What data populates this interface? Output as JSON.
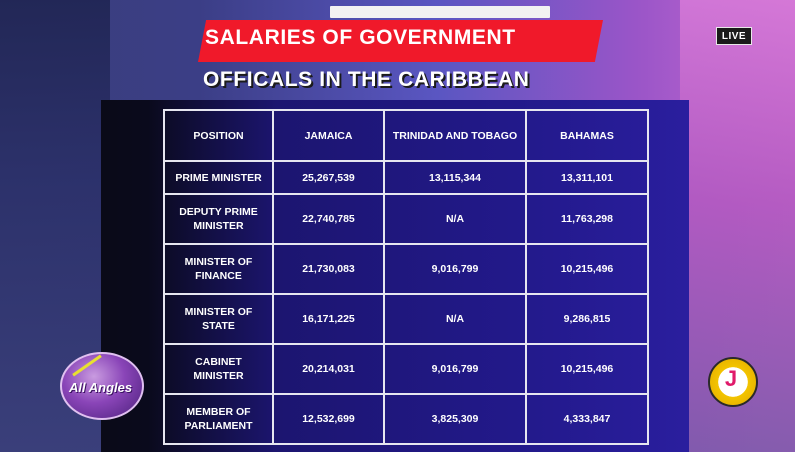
{
  "live_badge": "LIVE",
  "title": {
    "line1": "SALARIES OF GOVERNMENT",
    "line2": "OFFICALS IN THE CARIBBEAN"
  },
  "table": {
    "headers": [
      "POSITION",
      "JAMAICA",
      "TRINIDAD AND TOBAGO",
      "BAHAMAS"
    ],
    "rows": [
      {
        "position": "PRIME MINISTER",
        "jamaica": "25,267,539",
        "trinidad": "13,115,344",
        "bahamas": "13,311,101"
      },
      {
        "position": "DEPUTY PRIME MINISTER",
        "jamaica": "22,740,785",
        "trinidad": "N/A",
        "bahamas": "11,763,298"
      },
      {
        "position": "MINISTER OF FINANCE",
        "jamaica": "21,730,083",
        "trinidad": "9,016,799",
        "bahamas": "10,215,496"
      },
      {
        "position": "MINISTER OF STATE",
        "jamaica": "16,171,225",
        "trinidad": "N/A",
        "bahamas": "9,286,815"
      },
      {
        "position": "CABINET MINISTER",
        "jamaica": "20,214,031",
        "trinidad": "9,016,799",
        "bahamas": "10,215,496"
      },
      {
        "position": "MEMBER OF PARLIAMENT",
        "jamaica": "12,532,699",
        "trinidad": "3,825,309",
        "bahamas": "4,333,847"
      }
    ]
  },
  "logos": {
    "left_text": "All Angles",
    "left_icon": "all-angles-logo",
    "right_icon": "tvj-logo",
    "right_glyph": "J"
  }
}
